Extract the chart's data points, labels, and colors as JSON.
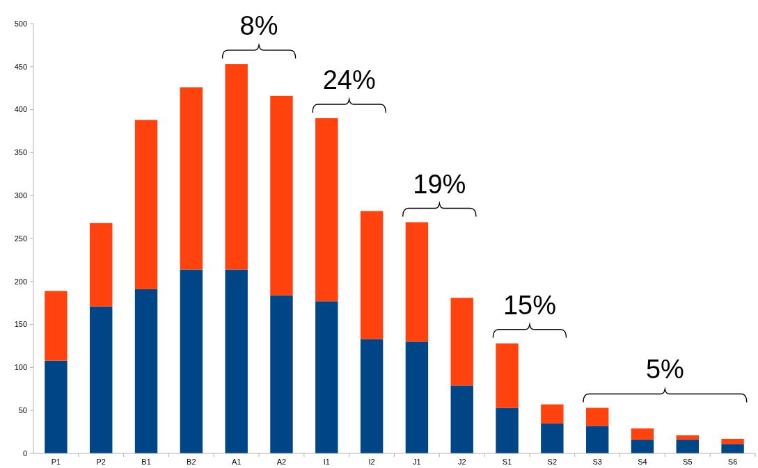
{
  "chart_data": {
    "type": "bar",
    "stacked": true,
    "categories": [
      "P1",
      "P2",
      "B1",
      "B2",
      "A1",
      "A2",
      "I1",
      "I2",
      "J1",
      "J2",
      "S1",
      "S2",
      "S3",
      "S4",
      "S5",
      "S6"
    ],
    "series": [
      {
        "color": "#004586",
        "values": [
          108,
          171,
          191,
          214,
          214,
          184,
          177,
          133,
          130,
          79,
          53,
          35,
          32,
          16,
          16,
          11
        ]
      },
      {
        "color": "#ff420e",
        "values": [
          81,
          97,
          197,
          212,
          239,
          232,
          213,
          149,
          139,
          102,
          75,
          22,
          21,
          13,
          5,
          6
        ]
      }
    ],
    "ylim": [
      0,
      500
    ],
    "yticks": [
      0,
      50,
      100,
      150,
      200,
      250,
      300,
      350,
      400,
      450,
      500
    ],
    "annotations": [
      "8%",
      "24%",
      "19%",
      "15%",
      "5%"
    ]
  }
}
